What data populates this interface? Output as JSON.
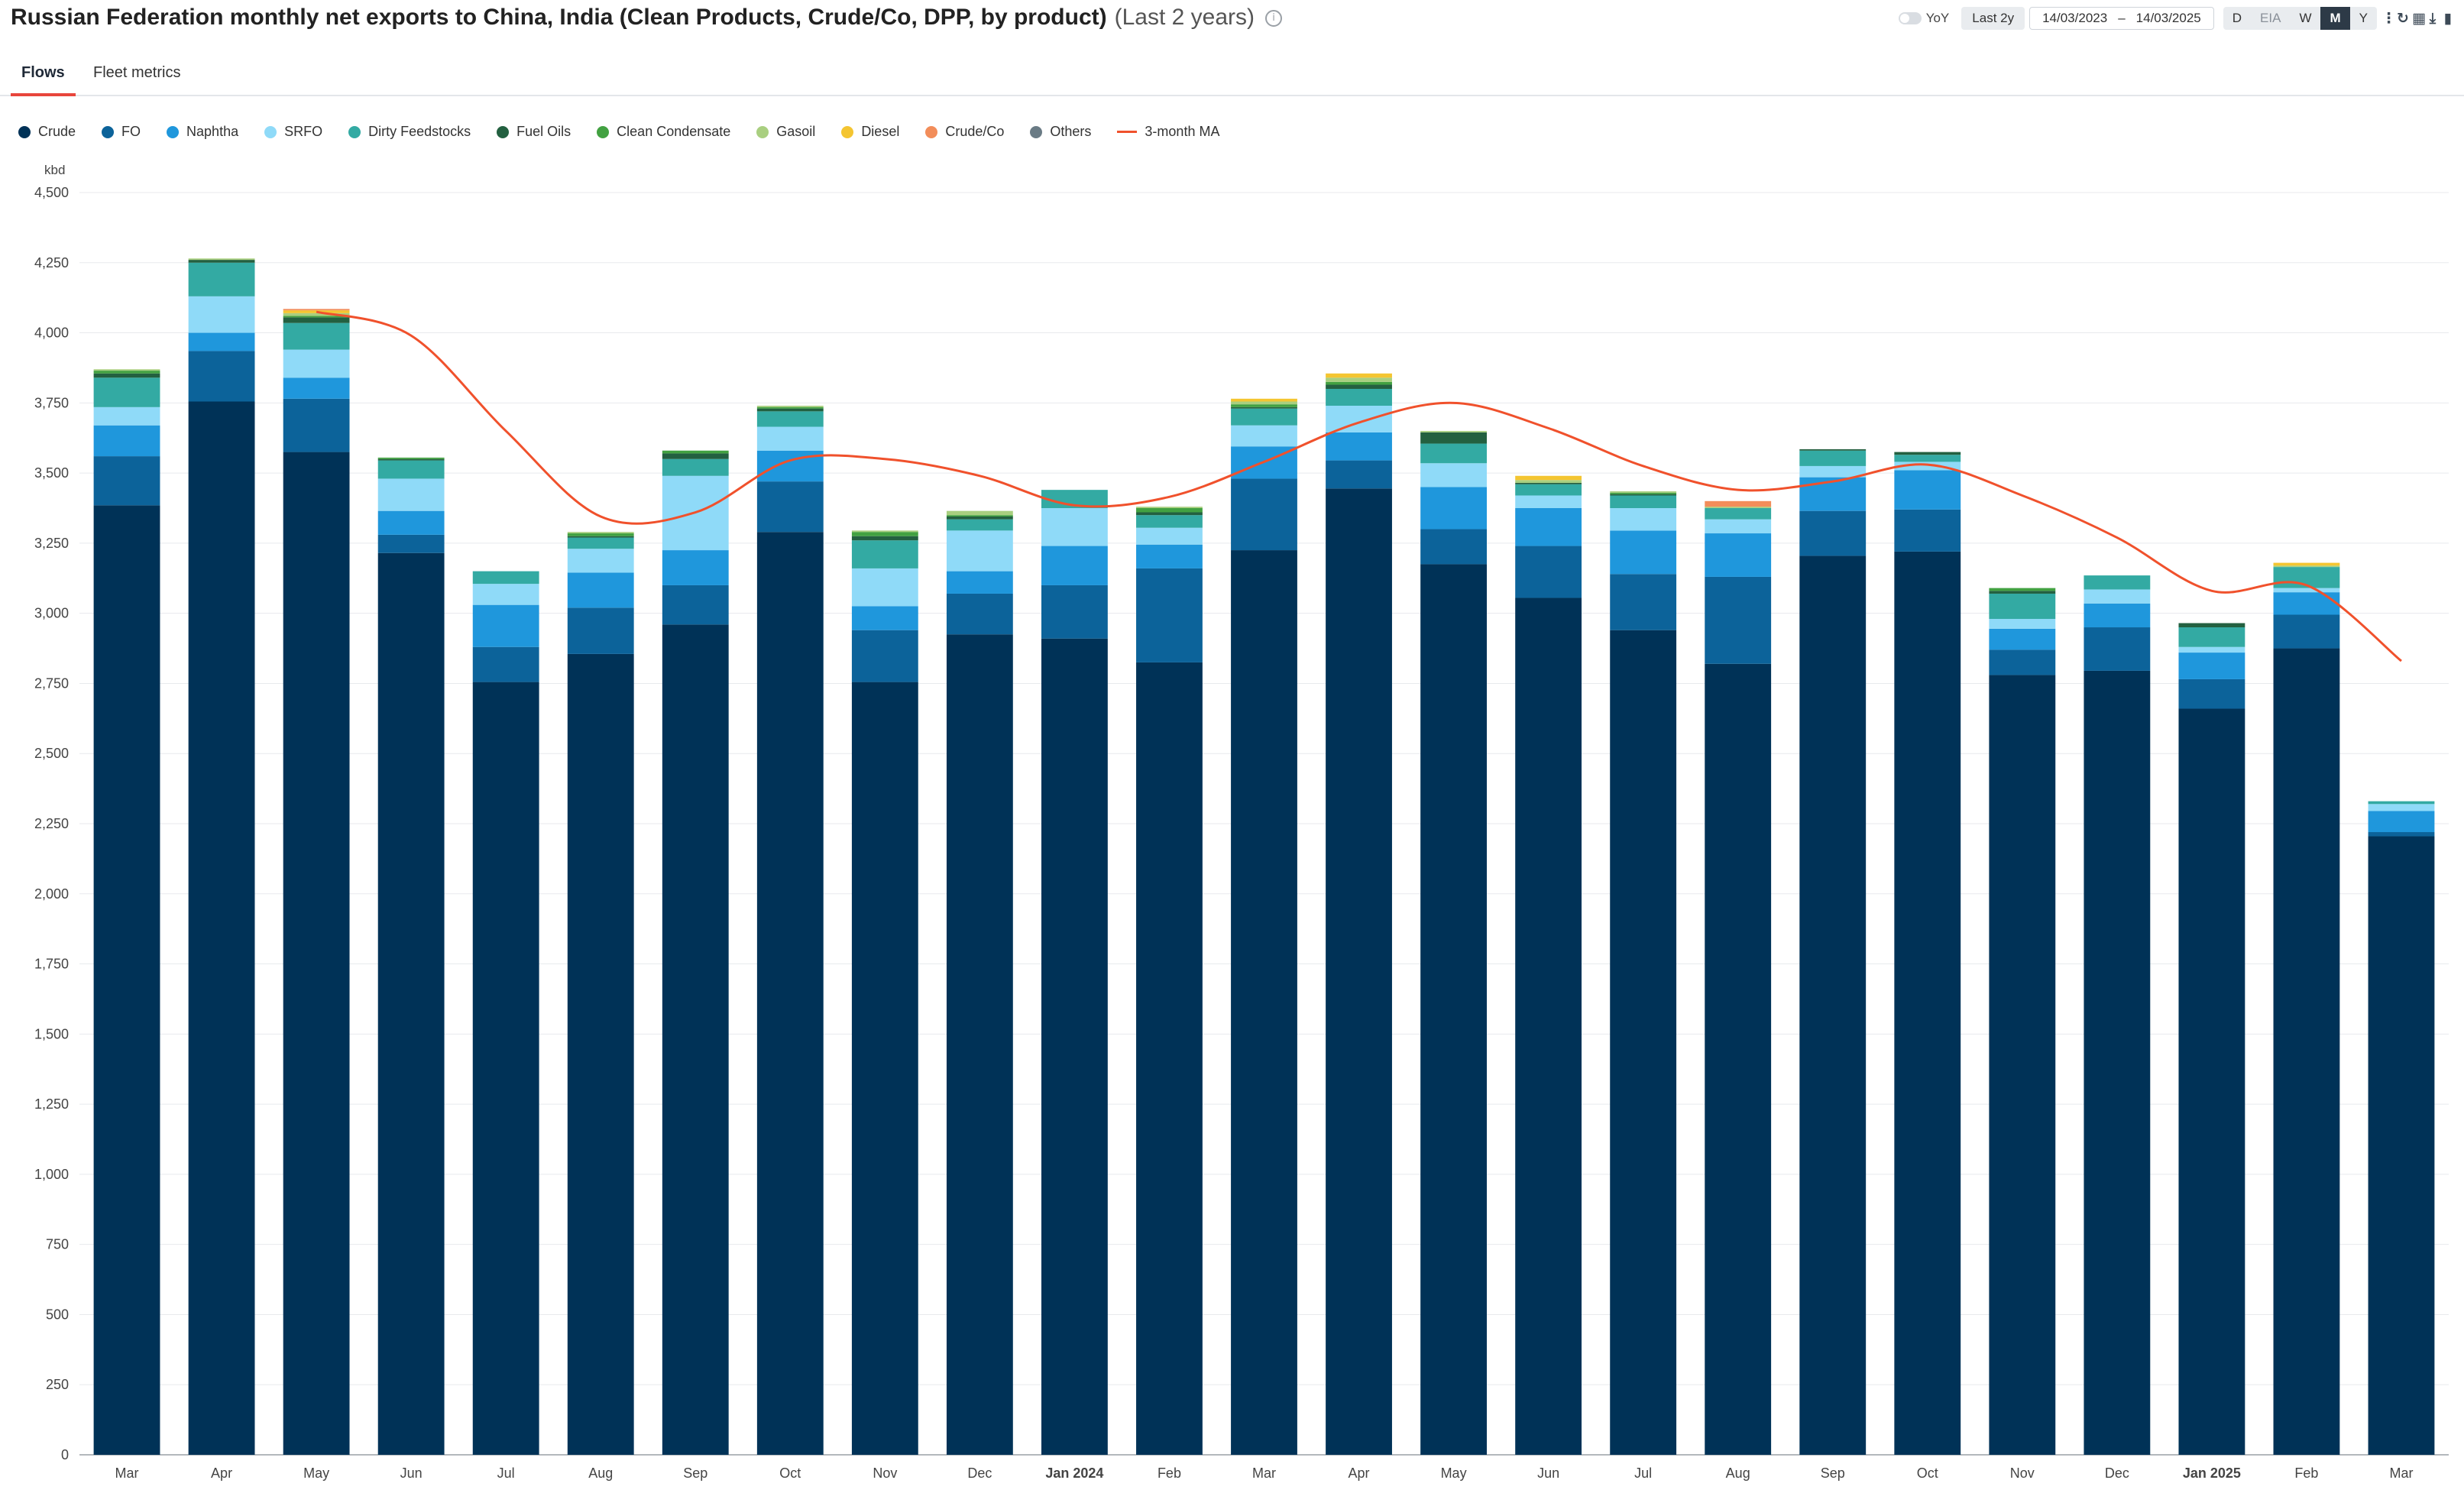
{
  "header": {
    "title": "Russian Federation monthly net exports to China, India (Clean Products, Crude/Co, DPP, by product)",
    "subtitle": "(Last 2 years)",
    "info_icon": "info-icon"
  },
  "toolbar": {
    "yoy_label": "YoY",
    "range_button": "Last 2y",
    "date_from": "14/03/2023",
    "date_sep": "–",
    "date_to": "14/03/2025",
    "freq_options": [
      "D",
      "EIA",
      "W",
      "M",
      "Y"
    ],
    "freq_active": "M",
    "icons": [
      "more-vertical-icon",
      "refresh-icon",
      "grid-icon",
      "download-icon",
      "bookmark-icon"
    ]
  },
  "tabs": [
    {
      "label": "Flows",
      "active": true
    },
    {
      "label": "Fleet metrics",
      "active": false
    }
  ],
  "colors": {
    "Crude": "#003257",
    "FO": "#0c639a",
    "Naphtha": "#1f97dc",
    "SRFO": "#8fdaf8",
    "Dirty Feedstocks": "#33aaa3",
    "Fuel Oils": "#236040",
    "Clean Condensate": "#42a141",
    "Gasoil": "#a9cf80",
    "Diesel": "#f4c531",
    "Crude/Co": "#f28d5a",
    "Others": "#6a7b85",
    "3-month MA": "#f0512c"
  },
  "chart_data": {
    "type": "bar",
    "stacked": true,
    "unit": "kbd",
    "ylim": [
      0,
      4500
    ],
    "yticks": [
      0,
      250,
      500,
      750,
      1000,
      1250,
      1500,
      1750,
      2000,
      2250,
      2500,
      2750,
      3000,
      3250,
      3500,
      3750,
      4000,
      4250,
      4500
    ],
    "grid": true,
    "legend_position": "top-left",
    "categories": [
      "Mar",
      "Apr",
      "May",
      "Jun",
      "Jul",
      "Aug",
      "Sep",
      "Oct",
      "Nov",
      "Dec",
      "Jan 2024",
      "Feb",
      "Mar",
      "Apr",
      "May",
      "Jun",
      "Jul",
      "Aug",
      "Sep",
      "Oct",
      "Nov",
      "Dec",
      "Jan 2025",
      "Feb",
      "Mar"
    ],
    "bold_categories": [
      "Jan 2024",
      "Jan 2025"
    ],
    "series": [
      {
        "name": "Crude",
        "values": [
          3385,
          3755,
          3575,
          3215,
          2755,
          2855,
          2960,
          3290,
          2755,
          2925,
          2910,
          2825,
          3225,
          3445,
          3175,
          3055,
          2940,
          2820,
          3205,
          3220,
          2780,
          2795,
          2660,
          2875,
          2205
        ]
      },
      {
        "name": "FO",
        "values": [
          175,
          180,
          190,
          65,
          125,
          165,
          140,
          180,
          185,
          145,
          190,
          335,
          255,
          100,
          125,
          185,
          200,
          310,
          160,
          150,
          90,
          155,
          105,
          120,
          15
        ]
      },
      {
        "name": "Naphtha",
        "values": [
          110,
          65,
          75,
          85,
          150,
          125,
          125,
          110,
          85,
          80,
          140,
          85,
          115,
          100,
          150,
          135,
          155,
          155,
          120,
          140,
          75,
          85,
          95,
          80,
          75
        ]
      },
      {
        "name": "SRFO",
        "values": [
          65,
          130,
          100,
          115,
          75,
          85,
          265,
          85,
          135,
          145,
          135,
          60,
          75,
          95,
          85,
          45,
          80,
          50,
          40,
          30,
          35,
          50,
          20,
          15,
          25
        ]
      },
      {
        "name": "Dirty Feedstocks",
        "values": [
          105,
          120,
          95,
          65,
          45,
          40,
          60,
          55,
          100,
          40,
          65,
          45,
          60,
          60,
          70,
          40,
          45,
          40,
          55,
          25,
          90,
          50,
          70,
          75,
          10
        ]
      },
      {
        "name": "Fuel Oils",
        "values": [
          15,
          10,
          20,
          5,
          0,
          5,
          20,
          10,
          15,
          10,
          0,
          10,
          5,
          15,
          40,
          5,
          5,
          0,
          5,
          10,
          10,
          0,
          15,
          0,
          0
        ]
      },
      {
        "name": "Clean Condensate",
        "values": [
          10,
          0,
          5,
          5,
          0,
          10,
          10,
          5,
          15,
          5,
          0,
          15,
          10,
          10,
          0,
          0,
          5,
          0,
          0,
          0,
          10,
          0,
          0,
          0,
          0
        ]
      },
      {
        "name": "Gasoil",
        "values": [
          5,
          5,
          10,
          0,
          0,
          5,
          0,
          5,
          5,
          15,
          0,
          5,
          10,
          15,
          5,
          10,
          5,
          5,
          0,
          0,
          0,
          0,
          0,
          5,
          0
        ]
      },
      {
        "name": "Diesel",
        "values": [
          0,
          0,
          10,
          0,
          0,
          0,
          0,
          0,
          0,
          0,
          0,
          0,
          10,
          15,
          0,
          15,
          0,
          0,
          0,
          0,
          0,
          0,
          0,
          10,
          0
        ]
      },
      {
        "name": "Crude/Co",
        "values": [
          0,
          0,
          5,
          0,
          0,
          0,
          0,
          0,
          0,
          0,
          0,
          0,
          0,
          0,
          0,
          0,
          0,
          20,
          0,
          0,
          0,
          0,
          0,
          0,
          0
        ]
      },
      {
        "name": "Others",
        "values": [
          0,
          0,
          0,
          0,
          0,
          0,
          0,
          0,
          0,
          0,
          0,
          0,
          0,
          0,
          0,
          0,
          0,
          0,
          0,
          0,
          0,
          0,
          0,
          0,
          0
        ]
      }
    ],
    "line_series": {
      "name": "3-month MA",
      "values": [
        null,
        null,
        4075,
        3990,
        3650,
        3345,
        3360,
        3545,
        3550,
        3490,
        3385,
        3415,
        3540,
        3680,
        3750,
        3660,
        3525,
        3440,
        3470,
        3530,
        3420,
        3270,
        3080,
        3100,
        2830
      ]
    }
  }
}
